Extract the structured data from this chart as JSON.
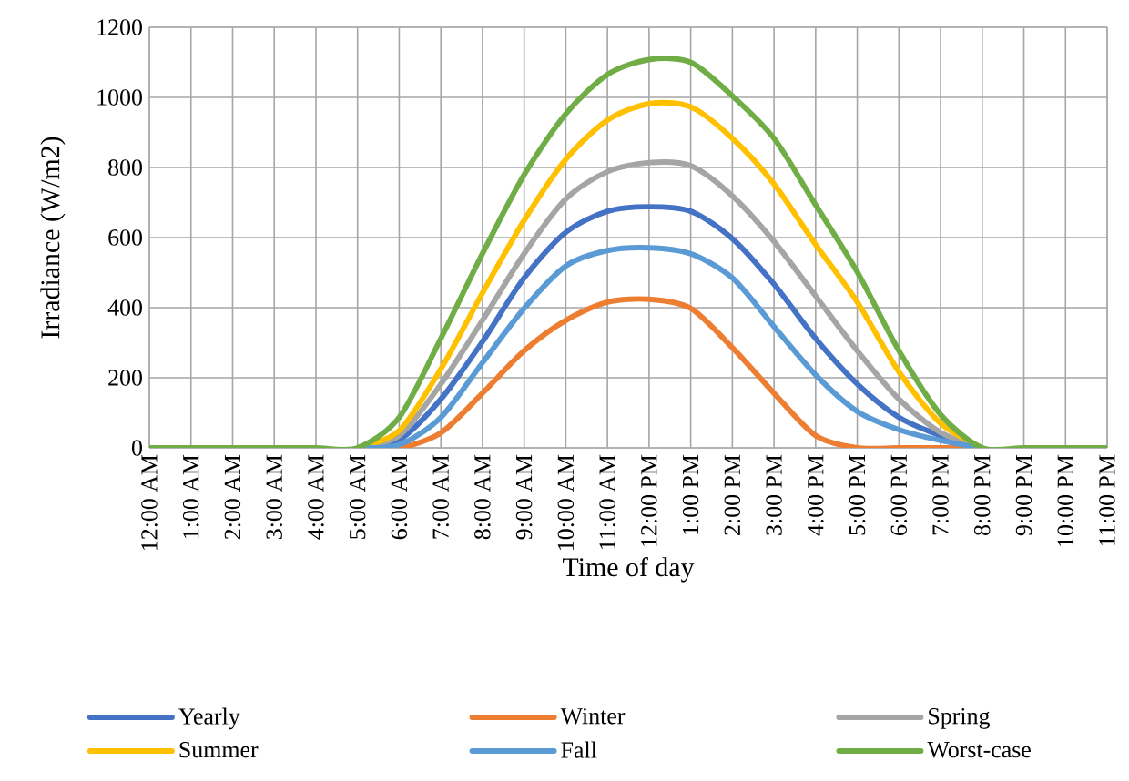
{
  "chart_data": {
    "type": "line",
    "xlabel": "Time of day",
    "ylabel": "Irradiance (W/m2)",
    "categories": [
      "12:00 AM",
      "1:00 AM",
      "2:00 AM",
      "3:00 AM",
      "4:00 AM",
      "5:00 AM",
      "6:00 AM",
      "7:00 AM",
      "8:00 AM",
      "9:00 AM",
      "10:00 AM",
      "11:00 AM",
      "12:00 PM",
      "1:00 PM",
      "2:00 PM",
      "3:00 PM",
      "4:00 PM",
      "5:00 PM",
      "6:00 PM",
      "7:00 PM",
      "8:00 PM",
      "9:00 PM",
      "10:00 PM",
      "11:00 PM"
    ],
    "series": [
      {
        "name": "Yearly",
        "color": "#4472c4",
        "values": [
          null,
          null,
          null,
          null,
          null,
          0,
          23,
          139,
          303,
          485,
          615,
          675,
          688,
          675,
          597,
          467,
          312,
          182,
          87,
          35,
          0,
          null,
          null,
          null
        ]
      },
      {
        "name": "Winter",
        "color": "#ed7d31",
        "values": [
          null,
          null,
          null,
          null,
          null,
          0,
          0,
          43,
          156,
          277,
          364,
          416,
          424,
          398,
          286,
          156,
          35,
          0,
          0,
          0,
          0,
          null,
          null,
          null
        ]
      },
      {
        "name": "Spring",
        "color": "#a5a5a5",
        "values": [
          null,
          null,
          null,
          null,
          null,
          0,
          35,
          182,
          364,
          554,
          710,
          788,
          814,
          805,
          719,
          589,
          433,
          277,
          139,
          44,
          0,
          null,
          null,
          null
        ]
      },
      {
        "name": "Summer",
        "color": "#ffc000",
        "values": [
          null,
          null,
          null,
          null,
          null,
          0,
          49,
          225,
          442,
          649,
          823,
          935,
          982,
          973,
          883,
          753,
          580,
          416,
          217,
          70,
          0,
          null,
          null,
          null
        ]
      },
      {
        "name": "Fall",
        "color": "#5b9bd5",
        "values": [
          null,
          null,
          null,
          null,
          null,
          0,
          9,
          87,
          243,
          398,
          519,
          563,
          571,
          554,
          485,
          346,
          208,
          104,
          52,
          21,
          0,
          null,
          null,
          null
        ]
      },
      {
        "name": "Worst-case",
        "color": "#70ad47",
        "values": [
          0,
          0,
          0,
          0,
          0,
          0,
          87,
          312,
          554,
          779,
          953,
          1065,
          1108,
          1100,
          1004,
          883,
          693,
          502,
          277,
          95,
          0,
          0,
          0,
          0
        ]
      }
    ],
    "ylim": [
      0,
      1200
    ],
    "yticks": [
      0,
      200,
      400,
      600,
      800,
      1000,
      1200
    ],
    "grid": true,
    "legend": "bottom",
    "marker": "none",
    "line_style": "solid"
  }
}
